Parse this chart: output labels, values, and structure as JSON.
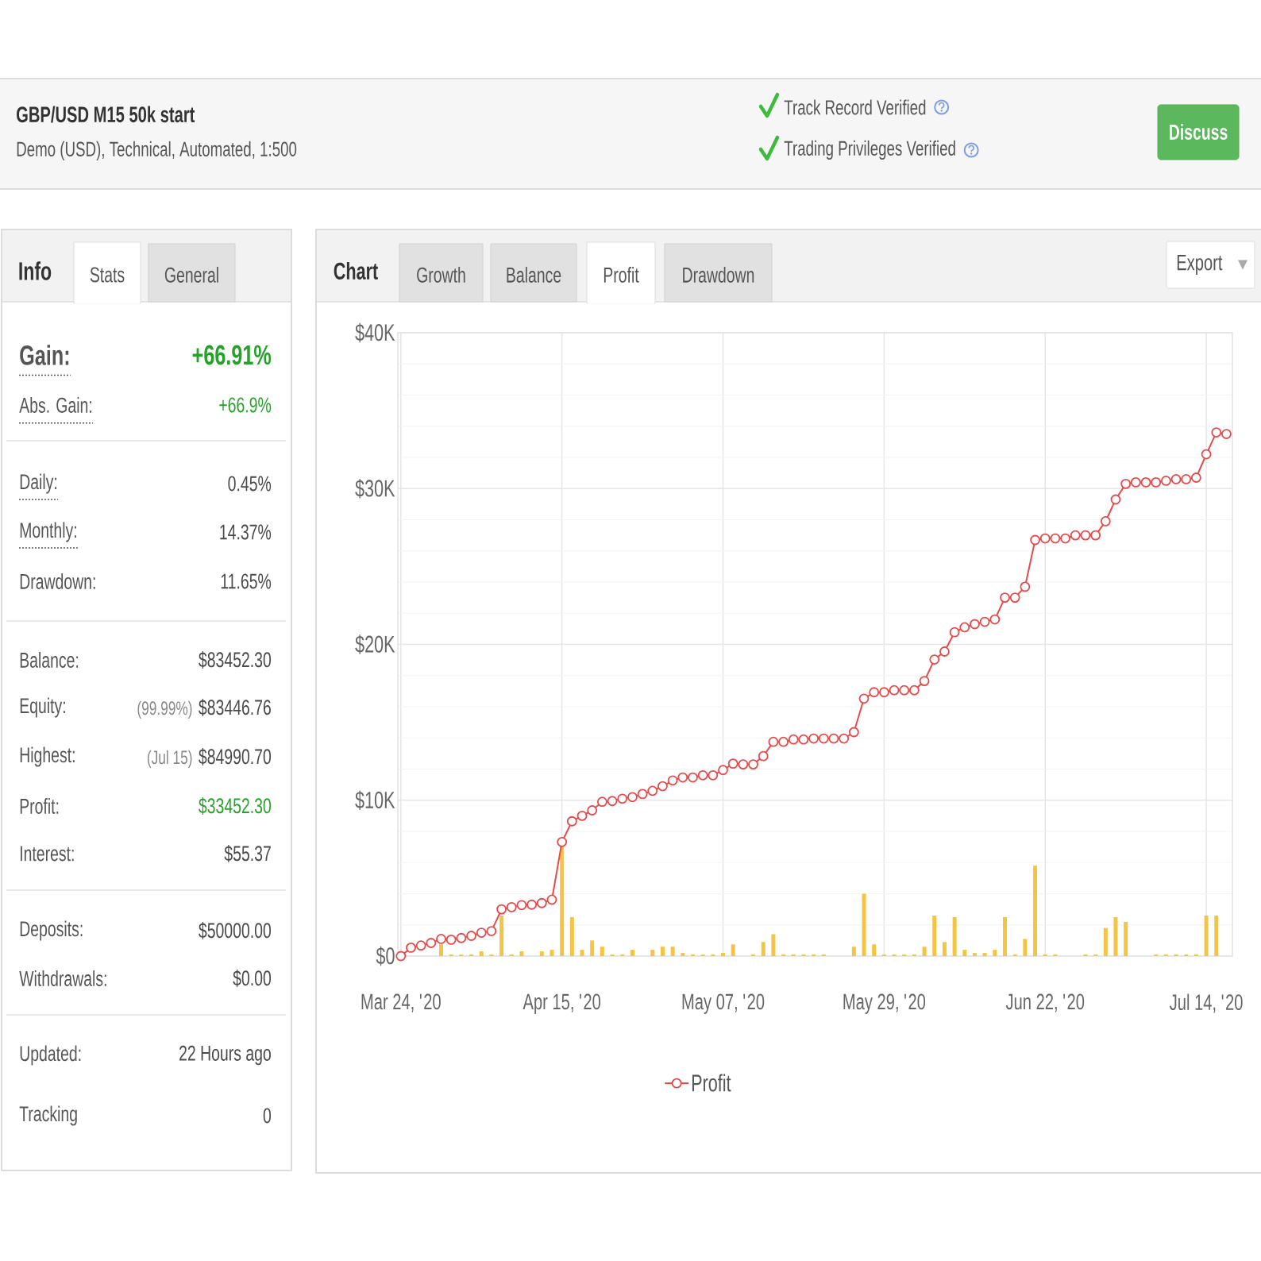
{
  "chart_data": [
    {
      "type": "other",
      "title": "GBP/USD M15 50k start",
      "subtitle": "Demo (USD), Technical, Automated, 1:500",
      "annotations": [
        "Track Record Verified",
        "Trading Privileges Verified",
        "Discuss"
      ]
    },
    {
      "type": "other",
      "annotations": [
        "Info",
        "Stats",
        "General",
        "Gain:",
        "+66.91%",
        "Abs. Gain:",
        "+66.9%",
        "Daily:",
        "0.45%",
        "Monthly:",
        "14.37%",
        "Drawdown:",
        "11.65%",
        "Balance:",
        "$83452.30",
        "Equity:",
        "(99.99%)",
        "$83446.76",
        "Highest:",
        "(Jul 15)",
        "$84990.70",
        "Profit:",
        "$33452.30",
        "Interest:",
        "$55.37",
        "Deposits:",
        "$50000.00",
        "Withdrawals:",
        "$0.00",
        "Updated:",
        "22 Hours ago",
        "Tracking",
        "0"
      ]
    },
    {
      "type": "line",
      "annotations": [
        "Chart",
        "Growth",
        "Balance",
        "Profit",
        "Drawdown",
        "Export"
      ],
      "categories": [
        "Mar 24, '20",
        null,
        null,
        null,
        null,
        null,
        null,
        null,
        null,
        null,
        null,
        null,
        null,
        null,
        null,
        null,
        "Apr 15, '20",
        null,
        null,
        null,
        null,
        null,
        null,
        null,
        null,
        null,
        null,
        null,
        null,
        null,
        null,
        null,
        "May 07, '20",
        null,
        null,
        null,
        null,
        null,
        null,
        null,
        null,
        null,
        null,
        null,
        null,
        null,
        null,
        null,
        "May 29, '20",
        null,
        null,
        null,
        null,
        null,
        null,
        null,
        null,
        null,
        null,
        null,
        null,
        null,
        null,
        null,
        "Jun 22, '20",
        null,
        null,
        null,
        null,
        null,
        null,
        null,
        null,
        null,
        null,
        null,
        null,
        null,
        null,
        null,
        "Jul 14, '20",
        null,
        null
      ],
      "series": [
        {
          "name": "Profit",
          "color": "#e64b4b",
          "values": [
            0,
            540,
            680,
            840,
            1100,
            1050,
            1160,
            1300,
            1500,
            1600,
            3000,
            3140,
            3270,
            3300,
            3400,
            3620,
            7320,
            8650,
            9000,
            9350,
            9900,
            9950,
            10100,
            10200,
            10400,
            10600,
            10900,
            11270,
            11460,
            11460,
            11600,
            11600,
            11940,
            12350,
            12300,
            12300,
            12830,
            13750,
            13750,
            13900,
            13900,
            13960,
            13960,
            13960,
            13960,
            14370,
            16520,
            16930,
            16930,
            17060,
            17060,
            17060,
            17650,
            19030,
            19540,
            20780,
            21100,
            21300,
            21450,
            21600,
            23000,
            23000,
            23700,
            26700,
            26800,
            26800,
            26800,
            27000,
            27000,
            27000,
            27900,
            29300,
            30300,
            30400,
            30400,
            30400,
            30500,
            30600,
            30600,
            30700,
            32200,
            33600,
            33500
          ]
        },
        {
          "type": "bar",
          "color": "#f6c443",
          "values": [
            null,
            null,
            null,
            null,
            750,
            100,
            100,
            100,
            300,
            100,
            2600,
            100,
            300,
            null,
            300,
            400,
            7100,
            2500,
            400,
            1000,
            600,
            100,
            100,
            400,
            null,
            400,
            600,
            600,
            200,
            100,
            100,
            100,
            200,
            750,
            null,
            100,
            900,
            1400,
            100,
            100,
            100,
            100,
            100,
            null,
            null,
            600,
            4000,
            750,
            100,
            100,
            100,
            100,
            600,
            2600,
            900,
            2500,
            400,
            200,
            200,
            400,
            2500,
            100,
            1100,
            5800,
            100,
            100,
            null,
            null,
            100,
            100,
            1800,
            2500,
            2200,
            null,
            null,
            100,
            100,
            100,
            100,
            100,
            2600,
            2600,
            null
          ]
        }
      ],
      "ylim": [
        0,
        40000
      ],
      "yticks": [
        {
          "value": 0,
          "label": "$0"
        },
        {
          "value": 2000,
          "label": null
        },
        {
          "value": 4000,
          "label": null
        },
        {
          "value": 6000,
          "label": null
        },
        {
          "value": 8000,
          "label": null
        },
        {
          "value": 10000,
          "label": "$10K"
        },
        {
          "value": 12000,
          "label": null
        },
        {
          "value": 14000,
          "label": null
        },
        {
          "value": 16000,
          "label": null
        },
        {
          "value": 18000,
          "label": null
        },
        {
          "value": 20000,
          "label": "$20K"
        },
        {
          "value": 22000,
          "label": null
        },
        {
          "value": 24000,
          "label": null
        },
        {
          "value": 26000,
          "label": null
        },
        {
          "value": 28000,
          "label": null
        },
        {
          "value": 30000,
          "label": "$30K"
        },
        {
          "value": 32000,
          "label": null
        },
        {
          "value": 34000,
          "label": null
        },
        {
          "value": 36000,
          "label": null
        },
        {
          "value": 38000,
          "label": null
        },
        {
          "value": 40000,
          "label": "$40K"
        }
      ],
      "grid": true,
      "legend": "bottom",
      "marker": "circle"
    }
  ]
}
